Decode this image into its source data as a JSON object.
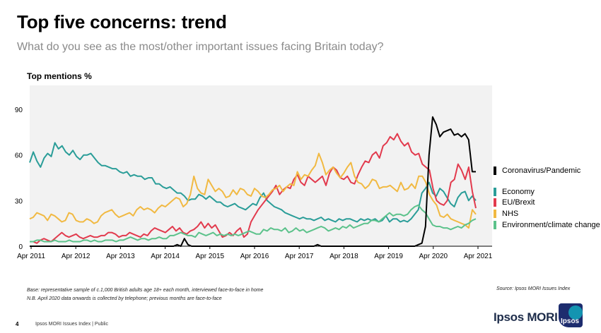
{
  "header": {
    "title": "Top five concerns: trend",
    "subtitle": "What do you see as the most/other important issues facing Britain today?"
  },
  "footer": {
    "base_note": "Base: representative sample of c.1,000 British adults age 18+ each month, interviewed face-to-face in home",
    "method_note": "N.B. April 2020 data onwards is collected by telephone; previous months are face-to-face",
    "source": "Source: Ipsos MORI Issues Index",
    "page_number": "4",
    "page_label": "Ipsos MORI Issues Index | Public",
    "brand": "Ipsos MORI",
    "logo_text": "Ipsos"
  },
  "chart_data": {
    "type": "line",
    "ylabel": "Top mentions %",
    "ylim": [
      0,
      90
    ],
    "yticks": [
      0,
      30,
      60,
      90
    ],
    "x_start": "Apr 2011",
    "x_end": "Apr 2021",
    "x_ticks": [
      "Apr 2011",
      "Apr 2012",
      "Apr 2013",
      "Apr 2014",
      "Apr 2015",
      "Apr 2016",
      "Apr 2017",
      "Apr 2018",
      "Apr 2019",
      "Apr 2020",
      "Apr 2021"
    ],
    "grid": false,
    "legend_position": "right",
    "series": [
      {
        "name": "Coronavirus/Pandemic",
        "color": "#000000",
        "values": [
          0,
          0,
          0,
          0,
          0,
          0,
          0,
          0,
          0,
          0,
          0,
          0,
          0,
          0,
          0,
          0,
          0,
          0,
          0,
          0,
          0,
          0,
          0,
          0,
          0,
          0,
          0,
          0,
          0,
          0,
          0,
          0,
          0,
          0,
          0,
          0,
          0,
          0,
          0,
          0,
          0,
          1,
          0,
          5,
          1,
          0,
          0,
          0,
          0,
          0,
          0,
          0,
          0,
          0,
          0,
          0,
          0,
          0,
          0,
          0,
          0,
          0,
          0,
          0,
          0,
          0,
          0,
          0,
          0,
          0,
          0,
          0,
          0,
          0,
          0,
          0,
          0,
          0,
          0,
          0,
          1,
          0,
          0,
          0,
          0,
          0,
          0,
          0,
          0,
          0,
          0,
          0,
          0,
          0,
          0,
          0,
          0,
          0,
          0,
          0,
          0,
          0,
          0,
          0,
          0,
          0,
          0,
          0,
          1,
          2,
          13,
          60,
          85,
          80,
          72,
          75,
          76,
          77,
          73,
          74,
          72,
          74,
          70,
          49,
          49
        ]
      },
      {
        "name": "Economy",
        "color": "#2a9d98",
        "values": [
          55,
          62,
          56,
          52,
          58,
          61,
          59,
          68,
          64,
          66,
          62,
          60,
          63,
          59,
          57,
          60,
          60,
          61,
          58,
          55,
          53,
          53,
          52,
          51,
          51,
          49,
          48,
          49,
          46,
          47,
          46,
          46,
          44,
          45,
          45,
          41,
          41,
          39,
          38,
          39,
          37,
          35,
          35,
          33,
          30,
          31,
          31,
          34,
          33,
          31,
          33,
          31,
          29,
          29,
          27,
          26,
          27,
          28,
          26,
          25,
          24,
          26,
          28,
          27,
          32,
          35,
          30,
          28,
          26,
          25,
          24,
          22,
          21,
          20,
          19,
          18,
          19,
          18,
          18,
          17,
          18,
          19,
          17,
          18,
          17,
          16,
          18,
          17,
          18,
          18,
          17,
          16,
          18,
          17,
          18,
          17,
          18,
          16,
          17,
          20,
          16,
          18,
          18,
          16,
          17,
          16,
          18,
          21,
          24,
          35,
          38,
          42,
          35,
          33,
          38,
          36,
          32,
          28,
          26,
          32,
          35,
          36,
          30,
          33,
          30
        ]
      },
      {
        "name": "EU/Brexit",
        "color": "#e23a4d",
        "values": [
          3,
          3,
          2,
          4,
          5,
          4,
          3,
          5,
          7,
          9,
          7,
          6,
          7,
          8,
          6,
          5,
          6,
          7,
          6,
          6,
          7,
          7,
          9,
          9,
          8,
          6,
          7,
          7,
          9,
          8,
          7,
          6,
          8,
          7,
          10,
          12,
          11,
          10,
          9,
          11,
          13,
          10,
          12,
          9,
          8,
          10,
          11,
          13,
          16,
          12,
          15,
          12,
          14,
          10,
          6,
          7,
          9,
          7,
          10,
          12,
          6,
          8,
          16,
          20,
          24,
          27,
          30,
          33,
          36,
          40,
          34,
          37,
          39,
          38,
          44,
          47,
          42,
          40,
          46,
          44,
          42,
          44,
          46,
          40,
          48,
          52,
          50,
          45,
          44,
          46,
          42,
          41,
          47,
          52,
          56,
          55,
          60,
          62,
          58,
          66,
          68,
          72,
          70,
          74,
          69,
          66,
          68,
          62,
          60,
          61,
          54,
          52,
          50,
          38,
          30,
          28,
          27,
          30,
          42,
          44,
          54,
          50,
          44,
          52,
          36,
          25
        ]
      },
      {
        "name": "NHS",
        "color": "#f1b942",
        "values": [
          18,
          19,
          22,
          21,
          20,
          17,
          21,
          20,
          18,
          16,
          17,
          22,
          21,
          17,
          16,
          16,
          18,
          17,
          15,
          16,
          20,
          22,
          23,
          24,
          21,
          19,
          20,
          21,
          22,
          20,
          24,
          26,
          24,
          25,
          24,
          22,
          25,
          27,
          26,
          28,
          30,
          32,
          31,
          26,
          28,
          34,
          46,
          38,
          35,
          34,
          44,
          40,
          36,
          38,
          36,
          32,
          33,
          37,
          34,
          38,
          37,
          34,
          33,
          38,
          36,
          33,
          32,
          34,
          37,
          38,
          40,
          36,
          39,
          41,
          40,
          49,
          44,
          47,
          46,
          50,
          53,
          61,
          55,
          47,
          50,
          52,
          48,
          45,
          48,
          52,
          55,
          46,
          42,
          41,
          38,
          40,
          44,
          43,
          38,
          39,
          39,
          40,
          38,
          36,
          42,
          37,
          38,
          41,
          38,
          46,
          46,
          42,
          34,
          30,
          27,
          20,
          19,
          21,
          18,
          17,
          16,
          15,
          14,
          12,
          24,
          21
        ]
      },
      {
        "name": "Environment/climate change",
        "color": "#5cc28b",
        "values": [
          3,
          3,
          4,
          4,
          3,
          3,
          3,
          4,
          3,
          3,
          3,
          4,
          3,
          3,
          3,
          4,
          4,
          3,
          4,
          3,
          3,
          4,
          4,
          4,
          3,
          4,
          4,
          5,
          6,
          5,
          4,
          5,
          5,
          4,
          5,
          5,
          6,
          5,
          5,
          7,
          7,
          8,
          9,
          8,
          7,
          7,
          6,
          9,
          8,
          7,
          8,
          9,
          7,
          8,
          7,
          8,
          7,
          8,
          7,
          8,
          9,
          10,
          9,
          8,
          8,
          11,
          10,
          12,
          11,
          11,
          10,
          12,
          9,
          10,
          12,
          10,
          11,
          9,
          10,
          11,
          12,
          13,
          12,
          10,
          11,
          12,
          11,
          13,
          12,
          14,
          12,
          13,
          14,
          15,
          15,
          17,
          17,
          16,
          18,
          20,
          22,
          20,
          21,
          21,
          20,
          21,
          24,
          26,
          27,
          24,
          22,
          18,
          14,
          13,
          13,
          12,
          12,
          11,
          12,
          13,
          12,
          14,
          15,
          17,
          18
        ]
      }
    ]
  }
}
